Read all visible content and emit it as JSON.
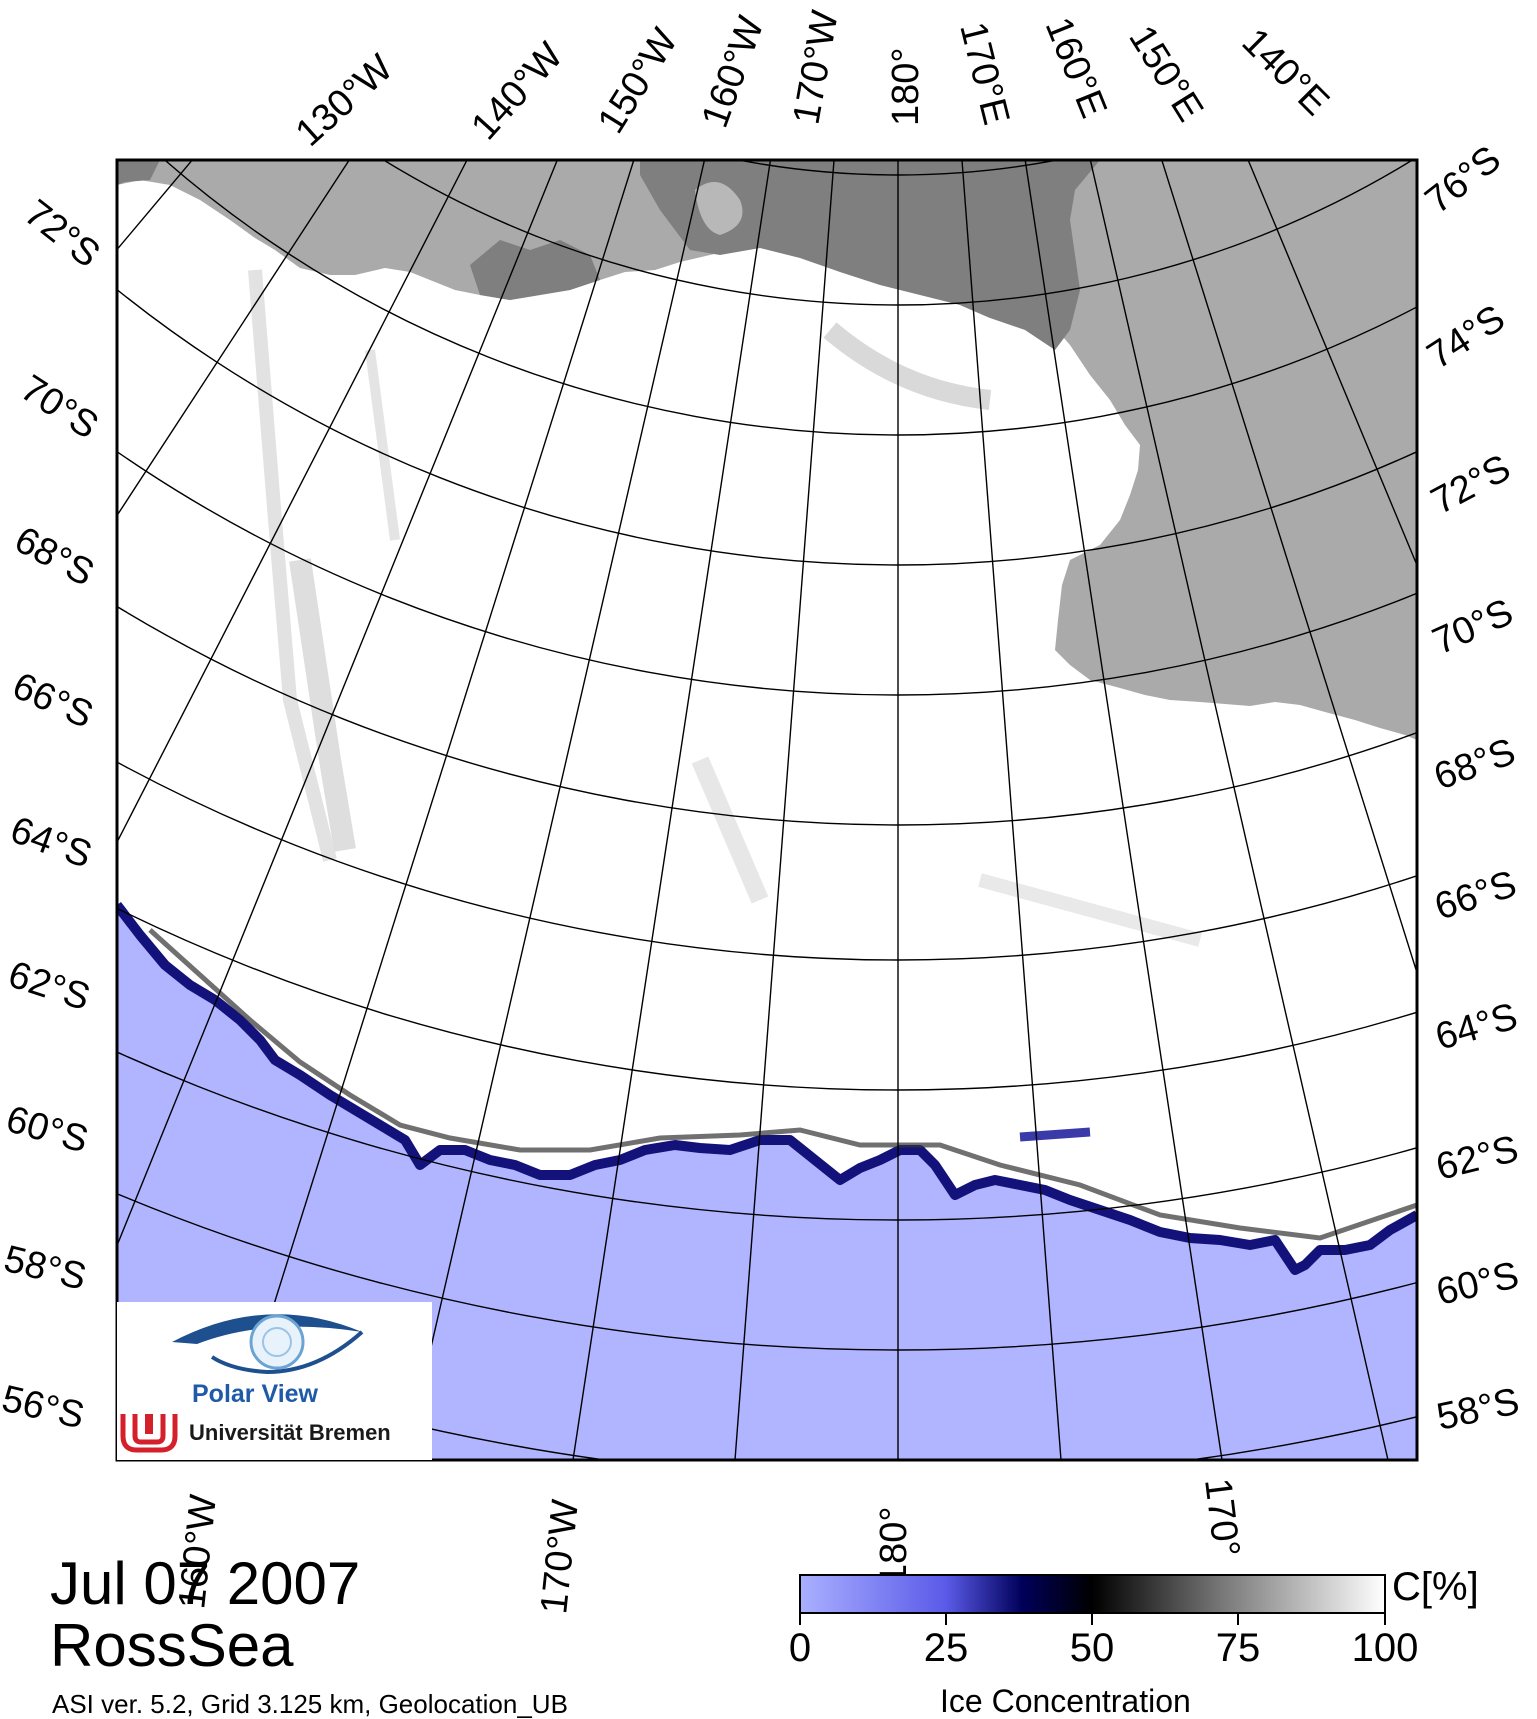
{
  "date": "Jul 07 2007",
  "region": "RossSea",
  "metadata": "ASI ver. 5.2,  Grid 3.125 km, Geolocation_UB",
  "colorbar": {
    "title": "Ice Concentration",
    "unit": "C[%]",
    "ticks": [
      "0",
      "25",
      "50",
      "75",
      "100"
    ],
    "gradient": [
      "#aab0ff",
      "#5a5ae8",
      "#00005a",
      "#000000",
      "#777777",
      "#ffffff"
    ]
  },
  "logo": {
    "title": "Polar View",
    "subtitle": "Universität Bremen"
  },
  "top_longitude_labels": [
    "130°W",
    "140°W",
    "150°W",
    "160°W",
    "170°W",
    "180°",
    "170°E",
    "160°E",
    "150°E",
    "140°E"
  ],
  "bottom_longitude_labels": [
    "160°W",
    "170°W",
    "180°",
    "170°"
  ],
  "left_latitude_labels": [
    "72°S",
    "70°S",
    "68°S",
    "66°S",
    "64°S",
    "62°S",
    "60°S",
    "58°S",
    "56°S"
  ],
  "right_latitude_labels": [
    "76°S",
    "74°S",
    "72°S",
    "70°S",
    "68°S",
    "66°S",
    "64°S",
    "62°S",
    "60°S",
    "58°S"
  ],
  "colors": {
    "land": "#aaaaaa",
    "land_dark": "#7f7f7f",
    "ice": "#ffffff",
    "open_water": "#b1b4ff",
    "ice_edge": "#12127a"
  }
}
